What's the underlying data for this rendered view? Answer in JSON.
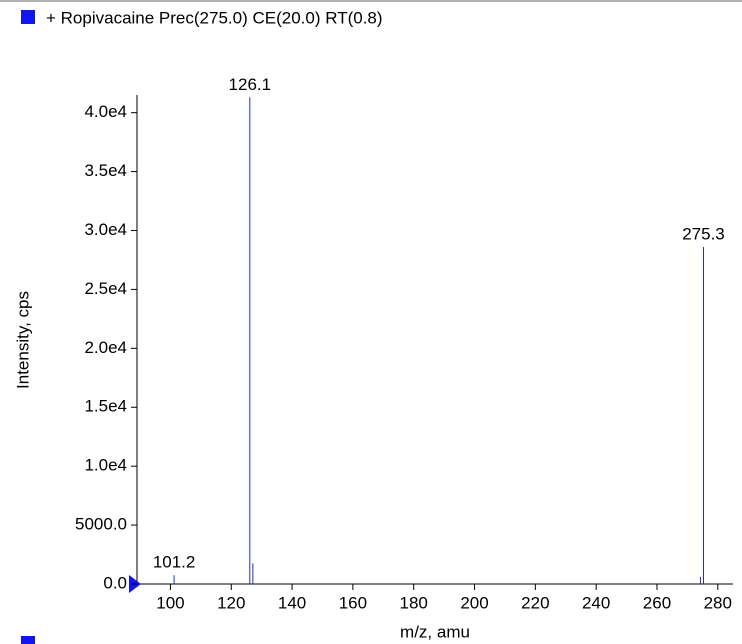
{
  "chart_data": {
    "type": "stem",
    "title": "+ Ropivacaine Prec(275.0) CE(20.0) RT(0.8)",
    "xlabel": "m/z, amu",
    "ylabel": "Intensity, cps",
    "x": [
      101.2,
      126.1,
      127.1,
      274.3,
      275.3
    ],
    "values": [
      750,
      41300,
      1750,
      600,
      28600
    ],
    "labeled": [
      true,
      true,
      false,
      false,
      true
    ],
    "color": "#2a2ad0",
    "xlim": [
      89,
      285
    ],
    "xticks": [
      100,
      120,
      140,
      160,
      180,
      200,
      220,
      240,
      260,
      280
    ],
    "ylim": [
      0,
      41500
    ],
    "yticks": [
      {
        "value": 0,
        "label": "0.0"
      },
      {
        "value": 5000,
        "label": "5000.0"
      },
      {
        "value": 10000,
        "label": "1.0e4"
      },
      {
        "value": 15000,
        "label": "1.5e4"
      },
      {
        "value": 20000,
        "label": "2.0e4"
      },
      {
        "value": 25000,
        "label": "2.5e4"
      },
      {
        "value": 30000,
        "label": "3.0e4"
      },
      {
        "value": 35000,
        "label": "3.5e4"
      },
      {
        "value": 40000,
        "label": "4.0e4"
      }
    ]
  }
}
